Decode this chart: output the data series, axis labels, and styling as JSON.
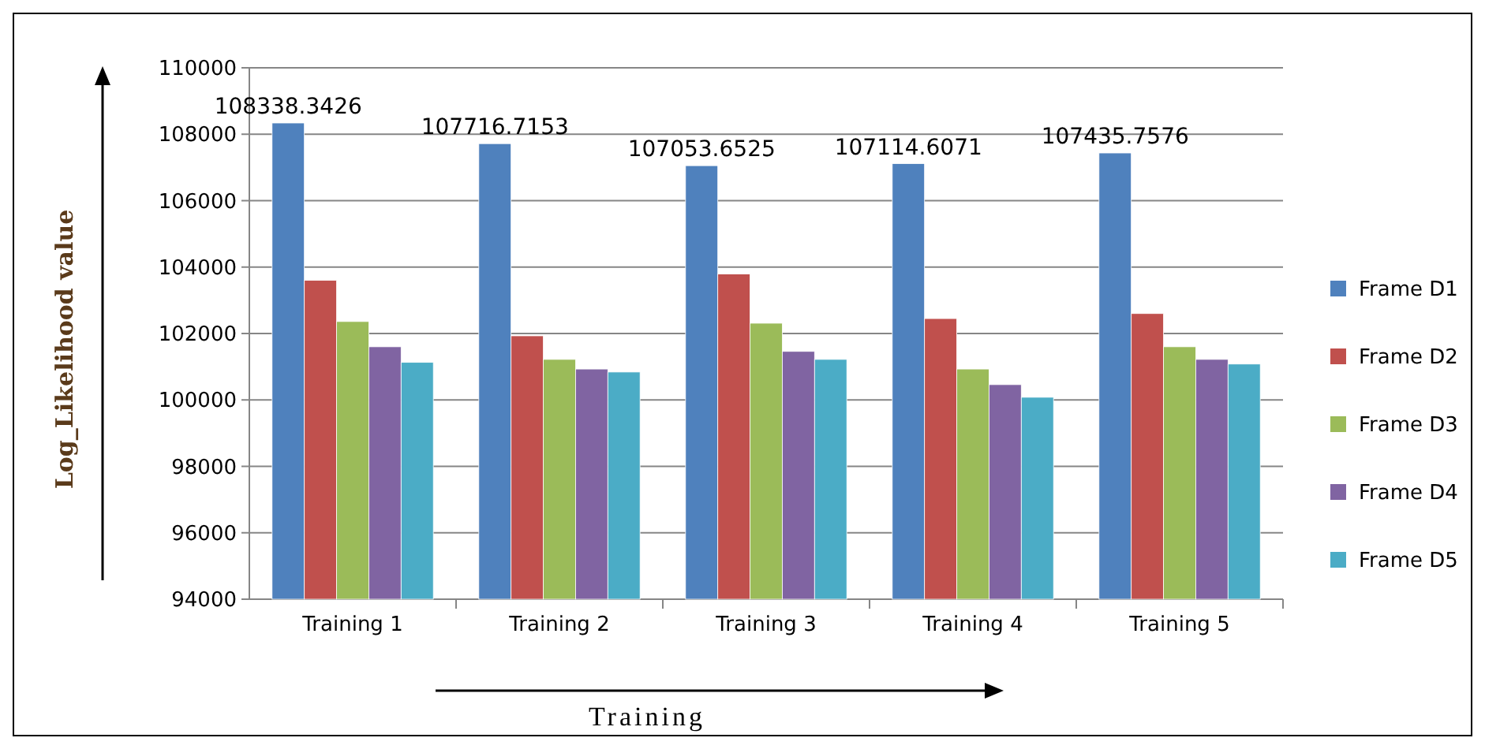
{
  "chart_data": {
    "type": "bar",
    "xlabel": "Training",
    "ylabel": "Log_Likelihood value",
    "categories": [
      "Training 1",
      "Training 2",
      "Training 3",
      "Training 4",
      "Training 5"
    ],
    "series": [
      {
        "name": "Frame D1",
        "color": "#4f81bd",
        "values": [
          108338.3426,
          107716.7153,
          107053.6525,
          107114.6071,
          107435.7576
        ],
        "value_labels": [
          "108338.3426",
          "107716.7153",
          "107053.6525",
          "107114.6071",
          "107435.7576"
        ]
      },
      {
        "name": "Frame D2",
        "color": "#c0504d",
        "values": [
          103600,
          101930,
          103790,
          102450,
          102600
        ]
      },
      {
        "name": "Frame D3",
        "color": "#9bbb59",
        "values": [
          102360,
          101220,
          102310,
          100930,
          101600
        ]
      },
      {
        "name": "Frame D4",
        "color": "#8064a2",
        "values": [
          101600,
          100930,
          101460,
          100460,
          101220
        ]
      },
      {
        "name": "Frame D5",
        "color": "#4bacc6",
        "values": [
          101130,
          100840,
          101220,
          100080,
          101080
        ]
      }
    ],
    "ylim": [
      94000,
      110000
    ],
    "yticks": [
      94000,
      96000,
      98000,
      100000,
      102000,
      104000,
      106000,
      108000,
      110000
    ],
    "grid": "y",
    "legend": "right"
  }
}
